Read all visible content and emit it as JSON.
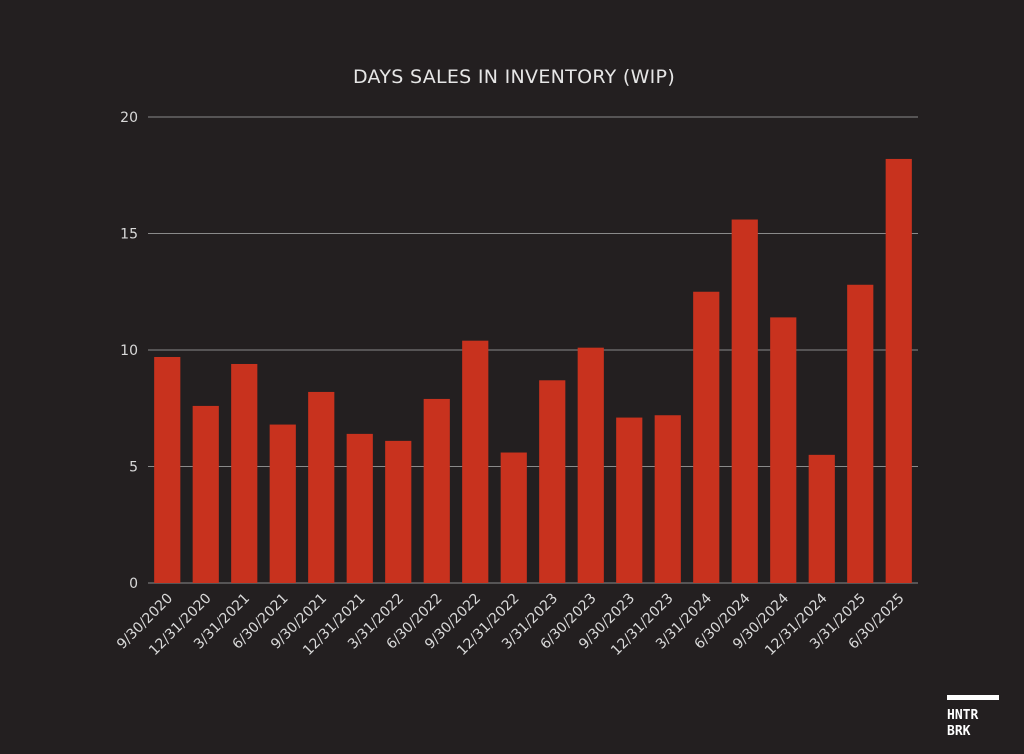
{
  "chart_data": {
    "type": "bar",
    "title": "DAYS SALES IN INVENTORY (WIP)",
    "xlabel": "",
    "ylabel": "",
    "ylim": [
      0,
      20
    ],
    "yticks": [
      0,
      5,
      10,
      15,
      20
    ],
    "grid": true,
    "legend": "none",
    "bar_color": "#c8321e",
    "categories": [
      "9/30/2020",
      "12/31/2020",
      "3/31/2021",
      "6/30/2021",
      "9/30/2021",
      "12/31/2021",
      "3/31/2022",
      "6/30/2022",
      "9/30/2022",
      "12/31/2022",
      "3/31/2023",
      "6/30/2023",
      "9/30/2023",
      "12/31/2023",
      "3/31/2024",
      "6/30/2024",
      "9/30/2024",
      "12/31/2024",
      "3/31/2025",
      "6/30/2025"
    ],
    "values": [
      9.7,
      7.6,
      9.4,
      6.8,
      8.2,
      6.4,
      6.1,
      7.9,
      10.4,
      5.6,
      8.7,
      10.1,
      7.1,
      7.2,
      12.5,
      15.6,
      11.4,
      5.5,
      12.8,
      18.2
    ]
  },
  "logo": {
    "line1": "HNTR",
    "line2": "BRK"
  },
  "colors": {
    "background": "#231f20",
    "bar": "#c8321e",
    "grid": "#8a8a8a",
    "text": "#d9d9d9"
  }
}
